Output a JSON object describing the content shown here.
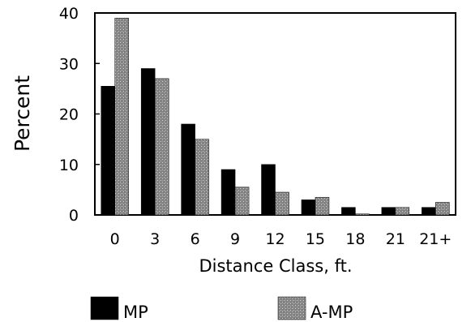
{
  "chart_data": {
    "type": "bar",
    "xlabel": "Distance Class, ft.",
    "ylabel": "Percent",
    "ylim": [
      0,
      40
    ],
    "yticks": [
      0,
      10,
      20,
      30,
      40
    ],
    "categories": [
      "0",
      "3",
      "6",
      "9",
      "12",
      "15",
      "18",
      "21",
      "21+"
    ],
    "series": [
      {
        "name": "MP",
        "color": "#000000",
        "values": [
          25.5,
          29,
          18,
          9,
          10,
          3,
          1.5,
          1.5,
          1.5
        ]
      },
      {
        "name": "A-MP",
        "color": "#9a9a9a",
        "pattern": "stipple",
        "values": [
          39,
          27,
          15,
          5.5,
          4.5,
          3.5,
          0.2,
          1.5,
          2.5
        ]
      }
    ],
    "grid": false,
    "legend_position": "bottom"
  }
}
